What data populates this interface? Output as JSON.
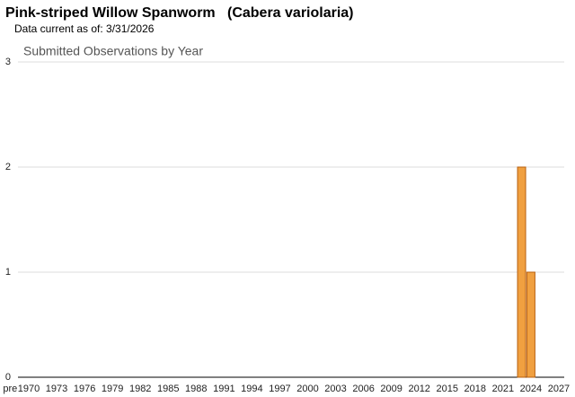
{
  "title": "Pink-striped Willow Spanworm   (Cabera variolaria)",
  "subtitle": "Data current as of: 3/31/2026",
  "chart_data": {
    "type": "bar",
    "title": "Submitted Observations by Year",
    "categories": [
      "pre",
      null,
      "1970",
      null,
      null,
      "1973",
      null,
      null,
      "1976",
      null,
      null,
      "1979",
      null,
      null,
      "1982",
      null,
      null,
      "1985",
      null,
      null,
      "1988",
      null,
      null,
      "1991",
      null,
      null,
      "1994",
      null,
      null,
      "1997",
      null,
      null,
      "2000",
      null,
      null,
      "2003",
      null,
      null,
      "2006",
      null,
      null,
      "2009",
      null,
      null,
      "2012",
      null,
      null,
      "2015",
      null,
      null,
      "2018",
      null,
      null,
      "2021",
      null,
      null,
      "2024",
      null,
      null,
      "2027"
    ],
    "values": [
      0,
      0,
      0,
      0,
      0,
      0,
      0,
      0,
      0,
      0,
      0,
      0,
      0,
      0,
      0,
      0,
      0,
      0,
      0,
      0,
      0,
      0,
      0,
      0,
      0,
      0,
      0,
      0,
      0,
      0,
      0,
      0,
      0,
      0,
      0,
      0,
      0,
      0,
      0,
      0,
      0,
      0,
      0,
      0,
      0,
      0,
      0,
      0,
      0,
      0,
      0,
      0,
      0,
      0,
      0,
      2,
      1,
      0,
      0,
      0
    ],
    "color": "#f0a040",
    "ylim": [
      0,
      3
    ],
    "yticks": [
      0,
      1,
      2,
      3
    ],
    "grid": true
  }
}
